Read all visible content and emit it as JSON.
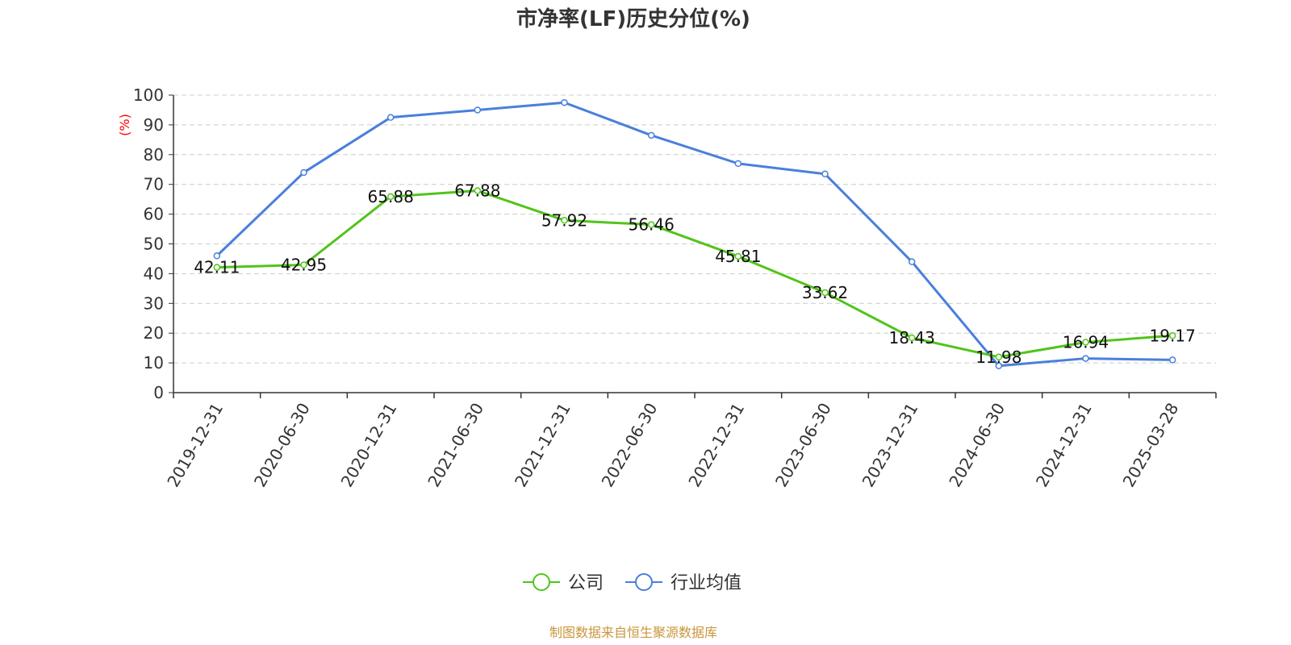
{
  "chart_data": {
    "type": "line",
    "title": "市净率(LF)历史分位(%)",
    "ylabel": "(%)",
    "ylim": [
      0,
      100
    ],
    "yticks": [
      0,
      10,
      20,
      30,
      40,
      50,
      60,
      70,
      80,
      90,
      100
    ],
    "categories": [
      "2019-12-31",
      "2020-06-30",
      "2020-12-31",
      "2021-06-30",
      "2021-12-31",
      "2022-06-30",
      "2022-12-31",
      "2023-06-30",
      "2023-12-31",
      "2024-06-30",
      "2024-12-31",
      "2025-03-28"
    ],
    "series": [
      {
        "name": "公司",
        "color": "#52c41a",
        "values": [
          42.11,
          42.95,
          65.88,
          67.88,
          57.92,
          56.46,
          45.81,
          33.62,
          18.43,
          11.98,
          16.94,
          19.17
        ],
        "labels": [
          "42.11",
          "42.95",
          "65.88",
          "67.88",
          "57.92",
          "56.46",
          "45.81",
          "33.62",
          "18.43",
          "11.98",
          "16.94",
          "19.17"
        ]
      },
      {
        "name": "行业均值",
        "color": "#4a7fdc",
        "values": [
          46.0,
          74.0,
          92.5,
          95.0,
          97.5,
          86.5,
          77.0,
          73.5,
          44.0,
          9.0,
          11.5,
          11.0
        ]
      }
    ],
    "grid": true,
    "legend_position": "bottom-center"
  },
  "source_text": "制图数据来自恒生聚源数据库"
}
